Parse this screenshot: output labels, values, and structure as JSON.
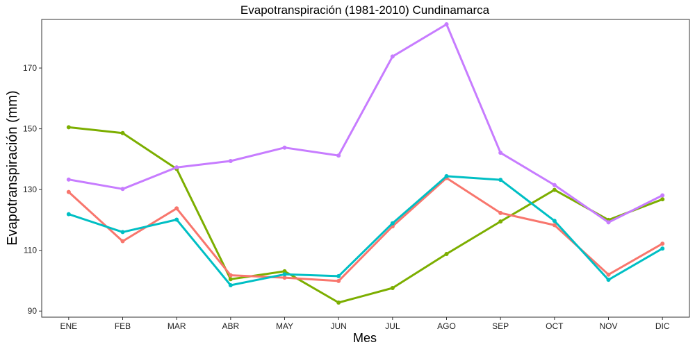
{
  "chart_data": {
    "type": "line",
    "title": "Evapotranspiración (1981-2010)  Cundinamarca",
    "xlabel": "Mes",
    "ylabel": "Evapotranspiración (mm)",
    "categories": [
      "ENE",
      "FEB",
      "MAR",
      "ABR",
      "MAY",
      "JUN",
      "JUL",
      "AGO",
      "SEP",
      "OCT",
      "NOV",
      "DIC"
    ],
    "ylim": [
      88,
      186
    ],
    "yticks": [
      90,
      110,
      130,
      150,
      170
    ],
    "grid": false,
    "legend": "none",
    "series": [
      {
        "color": "#7CAE00",
        "values": [
          150.5,
          148.6,
          136.8,
          100.5,
          103.1,
          92.8,
          97.6,
          108.8,
          119.5,
          129.9,
          120.0,
          126.8
        ]
      },
      {
        "color": "#C77CFF",
        "values": [
          133.3,
          130.2,
          137.3,
          139.4,
          143.8,
          141.2,
          173.8,
          184.4,
          142.1,
          131.5,
          119.2,
          128.1
        ]
      },
      {
        "color": "#F8766D",
        "values": [
          129.2,
          113.0,
          123.8,
          101.8,
          101.0,
          99.9,
          117.9,
          133.8,
          122.3,
          118.3,
          102.0,
          112.2
        ]
      },
      {
        "color": "#00BFC4",
        "values": [
          121.9,
          116.0,
          120.1,
          98.5,
          102.1,
          101.5,
          118.9,
          134.4,
          133.2,
          119.7,
          100.3,
          110.6
        ]
      }
    ]
  }
}
